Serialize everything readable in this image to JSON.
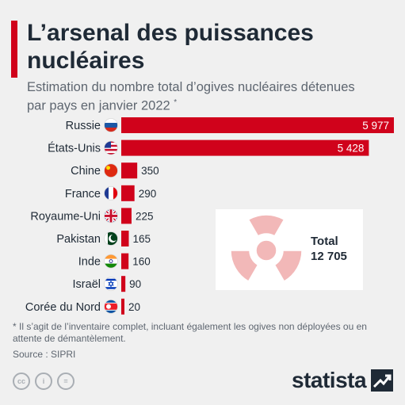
{
  "title": "L’arsenal des puissances nucléaires",
  "subtitle": "Estimation du nombre total d’ogives nucléaires détenues par pays en janvier 2022",
  "subtitle_mark": "*",
  "total": {
    "label": "Total",
    "value": "12 705"
  },
  "footnote": "* Il s’agit de l’inventaire complet, incluant également les ogives non déployées ou en attente de démantèlement.",
  "source": "Source : SIPRI",
  "brand": "statista",
  "colors": {
    "accent": "#d0021b",
    "bar": "#d0021b",
    "text": "#1f2a36",
    "muted": "#5e6670",
    "background": "#f0f0f0",
    "radiation": "#f2b8b8"
  },
  "chart_data": {
    "type": "bar",
    "orientation": "horizontal",
    "categories": [
      "Russie",
      "États-Unis",
      "Chine",
      "France",
      "Royaume-Uni",
      "Pakistan",
      "Inde",
      "Israël",
      "Corée du Nord"
    ],
    "values": [
      5977,
      5428,
      350,
      290,
      225,
      165,
      160,
      90,
      20
    ],
    "value_labels": [
      "5 977",
      "5 428",
      "350",
      "290",
      "225",
      "165",
      "160",
      "90",
      "20"
    ],
    "flags": [
      "russia-flag-icon",
      "usa-flag-icon",
      "china-flag-icon",
      "france-flag-icon",
      "uk-flag-icon",
      "pakistan-flag-icon",
      "india-flag-icon",
      "israel-flag-icon",
      "north-korea-flag-icon"
    ],
    "xlim": [
      0,
      5977
    ],
    "grid": false
  }
}
